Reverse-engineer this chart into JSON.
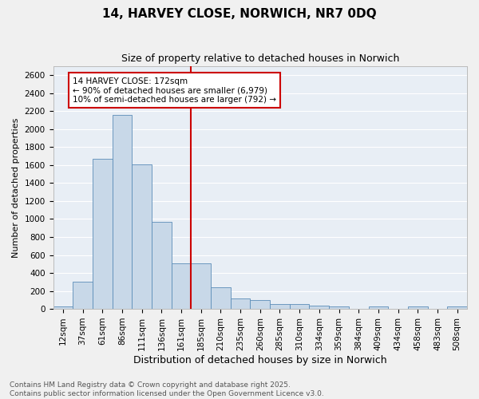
{
  "title": "14, HARVEY CLOSE, NORWICH, NR7 0DQ",
  "subtitle": "Size of property relative to detached houses in Norwich",
  "xlabel": "Distribution of detached houses by size in Norwich",
  "ylabel": "Number of detached properties",
  "categories": [
    "12sqm",
    "37sqm",
    "61sqm",
    "86sqm",
    "111sqm",
    "136sqm",
    "161sqm",
    "185sqm",
    "210sqm",
    "235sqm",
    "260sqm",
    "285sqm",
    "310sqm",
    "334sqm",
    "359sqm",
    "384sqm",
    "409sqm",
    "434sqm",
    "458sqm",
    "483sqm",
    "508sqm"
  ],
  "values": [
    25,
    300,
    1670,
    2155,
    1605,
    965,
    505,
    505,
    245,
    120,
    100,
    50,
    50,
    35,
    30,
    0,
    30,
    0,
    30,
    0,
    25
  ],
  "bar_color": "#c8d8e8",
  "bar_edge_color": "#5b8db8",
  "bg_color": "#e8eef5",
  "grid_color": "#ffffff",
  "annotation_text": "14 HARVEY CLOSE: 172sqm\n← 90% of detached houses are smaller (6,979)\n10% of semi-detached houses are larger (792) →",
  "vline_color": "#cc0000",
  "annotation_box_color": "#cc0000",
  "ylim": [
    0,
    2700
  ],
  "yticks": [
    0,
    200,
    400,
    600,
    800,
    1000,
    1200,
    1400,
    1600,
    1800,
    2000,
    2200,
    2400,
    2600
  ],
  "footer": "Contains HM Land Registry data © Crown copyright and database right 2025.\nContains public sector information licensed under the Open Government Licence v3.0.",
  "title_fontsize": 11,
  "subtitle_fontsize": 9,
  "xlabel_fontsize": 9,
  "ylabel_fontsize": 8,
  "tick_fontsize": 7.5,
  "footer_fontsize": 6.5,
  "annot_fontsize": 7.5
}
